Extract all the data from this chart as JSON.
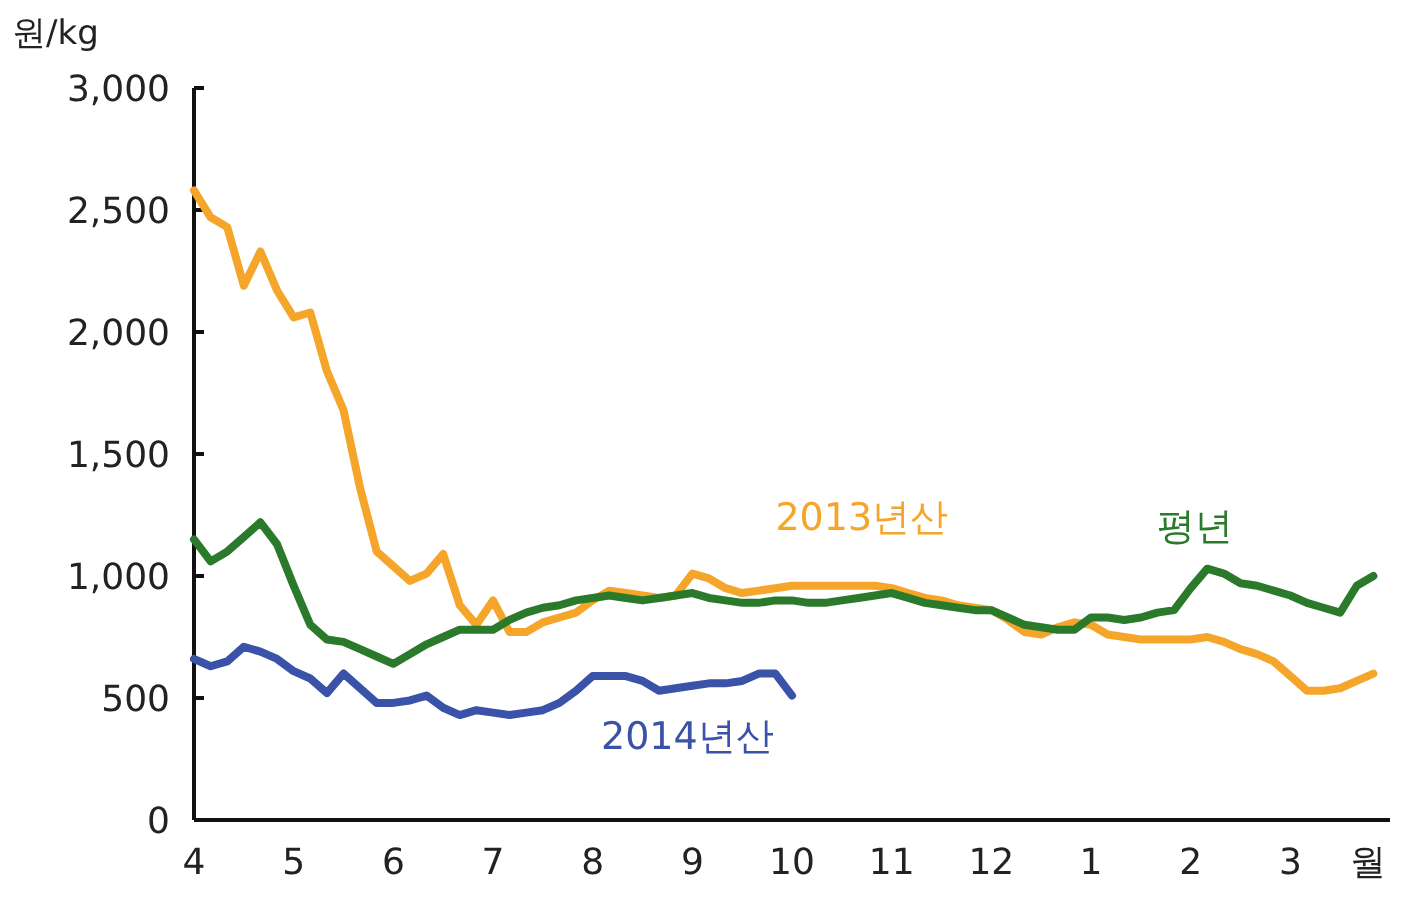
{
  "chart_data": {
    "type": "line",
    "ylabel": "원/kg",
    "xlabel": "월",
    "categories": [
      "4",
      null,
      null,
      null,
      null,
      null,
      "5",
      null,
      null,
      null,
      null,
      null,
      "6",
      null,
      null,
      null,
      null,
      null,
      "7",
      null,
      null,
      null,
      null,
      null,
      "8",
      null,
      null,
      null,
      null,
      null,
      "9",
      null,
      null,
      null,
      null,
      null,
      "10",
      null,
      null,
      null,
      null,
      null,
      "11",
      null,
      null,
      null,
      null,
      null,
      "12",
      null,
      null,
      null,
      null,
      null,
      "1",
      null,
      null,
      null,
      null,
      null,
      "2",
      null,
      null,
      null,
      null,
      null,
      "3",
      null,
      null,
      null,
      null,
      null
    ],
    "ylim": [
      0,
      3000
    ],
    "yticks": [
      {
        "value": 0,
        "label": "0"
      },
      {
        "value": 500,
        "label": "500"
      },
      {
        "value": 1000,
        "label": "1,000"
      },
      {
        "value": 1500,
        "label": "1,500"
      },
      {
        "value": 2000,
        "label": "2,000"
      },
      {
        "value": 2500,
        "label": "2,500"
      },
      {
        "value": 3000,
        "label": "3,000"
      }
    ],
    "grid": false,
    "marker": "none",
    "line_style": "solid",
    "series": [
      {
        "name": "2013년산",
        "color": "#f5a52a",
        "values": [
          2580,
          2470,
          2430,
          2190,
          2330,
          2170,
          2060,
          2080,
          1840,
          1680,
          1360,
          1100,
          1040,
          980,
          1010,
          1090,
          880,
          800,
          900,
          770,
          770,
          810,
          830,
          850,
          900,
          940,
          930,
          920,
          910,
          920,
          1010,
          990,
          950,
          930,
          940,
          950,
          960,
          960,
          960,
          960,
          960,
          960,
          950,
          930,
          910,
          900,
          880,
          870,
          860,
          820,
          770,
          760,
          790,
          810,
          800,
          760,
          750,
          740,
          740,
          740,
          740,
          750,
          730,
          700,
          680,
          650,
          590,
          530,
          530,
          540,
          570,
          600
        ]
      },
      {
        "name": "평년",
        "color": "#2b7a2b",
        "values": [
          1150,
          1060,
          1100,
          1160,
          1220,
          1130,
          960,
          800,
          740,
          730,
          700,
          670,
          640,
          680,
          720,
          750,
          780,
          780,
          780,
          820,
          850,
          870,
          880,
          900,
          910,
          920,
          910,
          900,
          910,
          920,
          930,
          910,
          900,
          890,
          890,
          900,
          900,
          890,
          890,
          900,
          910,
          920,
          930,
          910,
          890,
          880,
          870,
          860,
          860,
          830,
          800,
          790,
          780,
          780,
          830,
          830,
          820,
          830,
          850,
          860,
          950,
          1030,
          1010,
          970,
          960,
          940,
          920,
          890,
          870,
          850,
          960,
          1000
        ]
      },
      {
        "name": "2014년산",
        "color": "#3a52a8",
        "values": [
          660,
          630,
          650,
          710,
          690,
          660,
          610,
          580,
          520,
          600,
          540,
          480,
          480,
          490,
          510,
          460,
          430,
          450,
          440,
          430,
          440,
          450,
          480,
          530,
          590,
          590,
          590,
          570,
          530,
          540,
          550,
          560,
          560,
          570,
          600,
          600,
          510,
          null,
          null,
          null,
          null,
          null,
          null,
          null,
          null,
          null,
          null,
          null,
          null,
          null,
          null,
          null,
          null,
          null,
          null,
          null,
          null,
          null,
          null,
          null,
          null,
          null,
          null,
          null,
          null,
          null,
          null,
          null,
          null,
          null,
          null,
          null
        ]
      }
    ]
  }
}
